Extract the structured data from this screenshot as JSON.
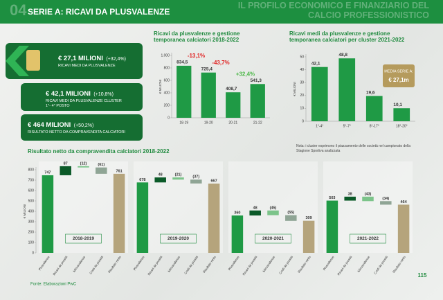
{
  "header": {
    "number": "04",
    "title": "SERIE A: RICAVI DA PLUSVALENZE",
    "section": "IL PROFILO ECONOMICO E FINANZIARIO DEL CALCIO PROFESSIONISTICO"
  },
  "kpis": [
    {
      "value": "€ 27,1 MILIONI",
      "change": "(+32,4%)",
      "label": "RICAVI MEDI DA PLUSVALENZE"
    },
    {
      "value": "€ 42,1 MILIONI",
      "change": "(+10,8%)",
      "label": "RICAVI MEDI DA PLUSVALENZE CLUSTER 1°- 4° POSTO"
    },
    {
      "value": "€ 464 MILIONI",
      "change": "(+50,2%)",
      "label": "RISULTATO NETTO DA COMPRAVENDITA CALCIATORI"
    }
  ],
  "chart_data": [
    {
      "type": "bar",
      "title": "Ricavi da plusvalenze e gestione temporanea calciatori 2018-2022",
      "ylabel": "€ MILIONI",
      "categories": [
        "18-19",
        "19-20",
        "20-21",
        "21-22"
      ],
      "values": [
        834.5,
        725.4,
        408.7,
        541.3
      ],
      "value_labels": [
        "834,5",
        "725,4",
        "408,7",
        "541,3"
      ],
      "color": "#1f9a45",
      "ylim": [
        0,
        1000
      ],
      "yticks": [
        0,
        200,
        400,
        600,
        800,
        {
          "value": 1000,
          "label": "1.000"
        }
      ],
      "grid": false,
      "annotations": [
        "-13,1%",
        "-43,7%",
        "+32,4%"
      ],
      "annotation_colors": [
        "#e02020",
        "#e02020",
        "#4cb848"
      ]
    },
    {
      "type": "bar",
      "title": "Ricavi medi da plusvalenze e gestione temporanea calciatori per cluster 2021-2022",
      "ylabel": "€ MILIONI",
      "categories": [
        "1°-4°",
        "5°-7°",
        "8°-17°",
        "18°-20°"
      ],
      "values": [
        42.1,
        48.8,
        19.6,
        10.1
      ],
      "value_labels": [
        "42,1",
        "48,8",
        "19,6",
        "10,1"
      ],
      "color": "#1f9a45",
      "ylim": [
        0,
        50
      ],
      "yticks": [
        0,
        10,
        20,
        30,
        40,
        50
      ],
      "grid": false,
      "callout": [
        "MEDIA SERIE A:",
        "€ 27,1m"
      ],
      "note": "Nota: i cluster esprimono il piazzamento delle società nel campionato della Stagione Sportiva analizzata"
    },
    {
      "type": "waterfall",
      "title": "Risultato netto da compravendita calciatori 2018-2022",
      "ylabel": "€ MILIONI",
      "categories": [
        "Plusvalenze",
        "Ricavi da prestiti",
        "Minusvalenze",
        "Costi da prestiti",
        "Risultato netto"
      ],
      "colors": [
        "#1f9a45",
        "#0b5a28",
        "#7cc48a",
        "#8fa595",
        "#b5a47c"
      ],
      "ylim": [
        0,
        800
      ],
      "yticks": [
        0,
        100,
        200,
        300,
        400,
        500,
        600,
        700,
        800
      ],
      "panels": [
        {
          "name": "2018-2019",
          "values": [
            747,
            87,
            -12,
            -61,
            761
          ],
          "value_labels": [
            "747",
            "87",
            "(12)",
            "(61)",
            "761"
          ]
        },
        {
          "name": "2019-2020",
          "values": [
            678,
            48,
            -21,
            -37,
            667
          ],
          "value_labels": [
            "678",
            "48",
            "(21)",
            "(37)",
            "667"
          ]
        },
        {
          "name": "2020-2021",
          "values": [
            360,
            48,
            -45,
            -55,
            309
          ],
          "value_labels": [
            "360",
            "48",
            "(45)",
            "(55)",
            "309"
          ]
        },
        {
          "name": "2021-2022",
          "values": [
            503,
            38,
            -43,
            -34,
            464
          ],
          "value_labels": [
            "503",
            "38",
            "(43)",
            "(34)",
            "464"
          ]
        }
      ]
    }
  ],
  "footer": {
    "source": "Fonte: Elaborazioni PwC",
    "page": "115"
  }
}
